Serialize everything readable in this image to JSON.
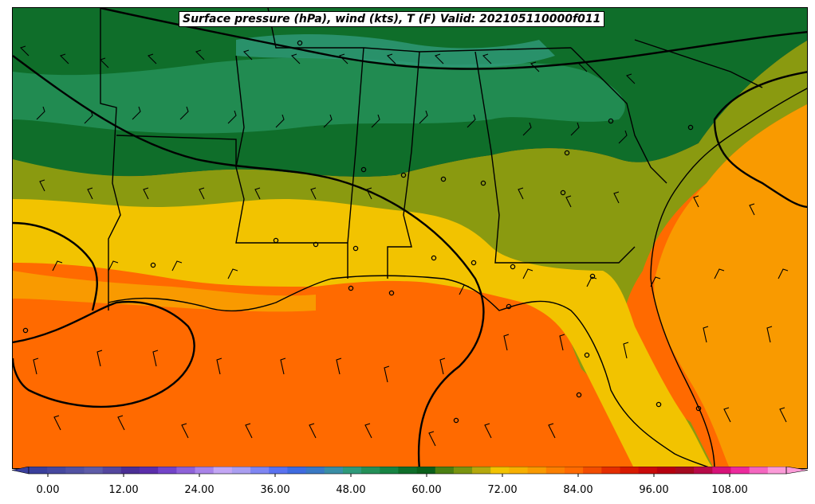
{
  "title": "Surface pressure (hPa), wind (kts), T (F) Valid: 202105110000f011",
  "colorbar": {
    "tick_labels": [
      "0.00",
      "12.00",
      "24.00",
      "36.00",
      "48.00",
      "60.00",
      "72.00",
      "84.00",
      "96.00",
      "108.00"
    ],
    "tick_values": [
      0,
      12,
      24,
      36,
      48,
      60,
      72,
      84,
      96,
      108
    ],
    "min": 0,
    "max": 120,
    "step": 3,
    "extend": "both",
    "colors": [
      "#3a3f9c",
      "#46489f",
      "#5252a3",
      "#5e5ca8",
      "#54479e",
      "#4b2f95",
      "#5b2eab",
      "#7344c9",
      "#8e62d8",
      "#a983e8",
      "#c3a6f4",
      "#aa9ef0",
      "#7f86f2",
      "#5a72f0",
      "#3f6be0",
      "#3a79c4",
      "#3a8ea6",
      "#2f9a7a",
      "#249058",
      "#178443",
      "#0f6e2a",
      "#0b5f1b",
      "#4b7f12",
      "#7a9410",
      "#b5a80d",
      "#f2c300",
      "#f7b000",
      "#f99a00",
      "#fb7f00",
      "#ff6a00",
      "#f24d00",
      "#e42e00",
      "#d71a00",
      "#c90a0a",
      "#b6000f",
      "#a40a20",
      "#b70a48",
      "#d61278",
      "#ec2a9d",
      "#f466c0",
      "#fb9bd8"
    ]
  },
  "legend_colors": {
    "outline": "#000000",
    "isobar": "#000000",
    "barb": "#000000"
  },
  "icons": [
    "wind-barb-icon",
    "pressure-station-icon"
  ]
}
